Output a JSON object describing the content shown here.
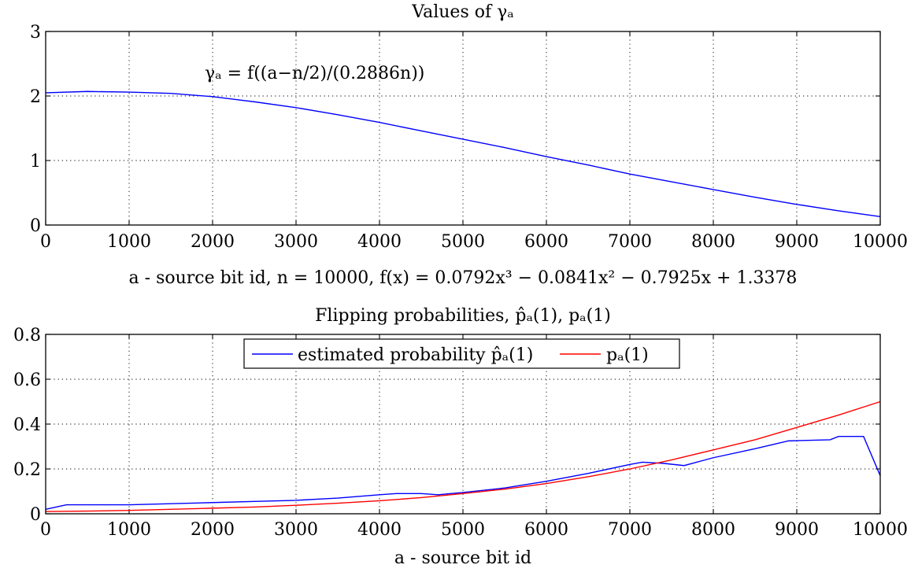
{
  "chart_data": [
    {
      "id": "gamma",
      "type": "line",
      "title": "Values of γₐ",
      "xlabel": "a - source bit id, n = 10000, f(x) = 0.0792x³ − 0.0841x² − 0.7925x + 1.3378",
      "ylabel": "",
      "xlim": [
        0,
        10000
      ],
      "ylim": [
        0,
        3
      ],
      "x_ticks": [
        "0",
        "1000",
        "2000",
        "3000",
        "4000",
        "5000",
        "6000",
        "7000",
        "8000",
        "9000",
        "10000"
      ],
      "y_ticks": [
        "0",
        "1",
        "2",
        "3"
      ],
      "grid": true,
      "annotation": "γₐ = f((a−n/2)/(0.2886n))",
      "series": [
        {
          "color": "#0000ff",
          "x": [
            0,
            500,
            1000,
            1500,
            2000,
            2500,
            3000,
            3500,
            4000,
            4500,
            5000,
            5500,
            6000,
            6500,
            7000,
            7500,
            8000,
            8500,
            9000,
            9500,
            10000
          ],
          "y": [
            2.05,
            2.07,
            2.06,
            2.04,
            1.99,
            1.91,
            1.82,
            1.71,
            1.59,
            1.46,
            1.33,
            1.2,
            1.06,
            0.93,
            0.79,
            0.67,
            0.55,
            0.43,
            0.32,
            0.22,
            0.13
          ]
        }
      ]
    },
    {
      "id": "flip",
      "type": "line",
      "title": "Flipping probabilities, p̂ₐ(1), pₐ(1)",
      "xlabel": "a - source bit id",
      "ylabel": "",
      "xlim": [
        0,
        10000
      ],
      "ylim": [
        0,
        0.8
      ],
      "x_ticks": [
        "0",
        "1000",
        "2000",
        "3000",
        "4000",
        "5000",
        "6000",
        "7000",
        "8000",
        "9000",
        "10000"
      ],
      "y_ticks": [
        "0",
        "0.2",
        "0.4",
        "0.6",
        "0.8"
      ],
      "grid": true,
      "legend_position": "top",
      "series": [
        {
          "name": "estimated probability p̂ₐ(1)",
          "color": "#0000ff",
          "x": [
            0,
            250,
            500,
            1000,
            1500,
            2000,
            2500,
            3000,
            3500,
            4000,
            4200,
            4500,
            4700,
            5000,
            5500,
            6000,
            6500,
            7000,
            7150,
            7400,
            7650,
            8000,
            8500,
            8900,
            9400,
            9500,
            9800,
            10000
          ],
          "y": [
            0.02,
            0.04,
            0.04,
            0.04,
            0.045,
            0.05,
            0.055,
            0.06,
            0.07,
            0.085,
            0.09,
            0.09,
            0.085,
            0.095,
            0.115,
            0.145,
            0.18,
            0.22,
            0.23,
            0.225,
            0.215,
            0.25,
            0.29,
            0.325,
            0.33,
            0.345,
            0.345,
            0.17
          ]
        },
        {
          "name": "pₐ(1)",
          "color": "#ff0000",
          "x": [
            0,
            500,
            1000,
            1500,
            2000,
            2500,
            3000,
            3500,
            4000,
            4500,
            5000,
            5500,
            6000,
            6500,
            7000,
            7500,
            8000,
            8500,
            9000,
            9500,
            10000
          ],
          "y": [
            0.01,
            0.012,
            0.015,
            0.02,
            0.025,
            0.03,
            0.038,
            0.047,
            0.058,
            0.072,
            0.09,
            0.11,
            0.135,
            0.165,
            0.2,
            0.24,
            0.285,
            0.33,
            0.385,
            0.44,
            0.5
          ]
        }
      ]
    }
  ]
}
